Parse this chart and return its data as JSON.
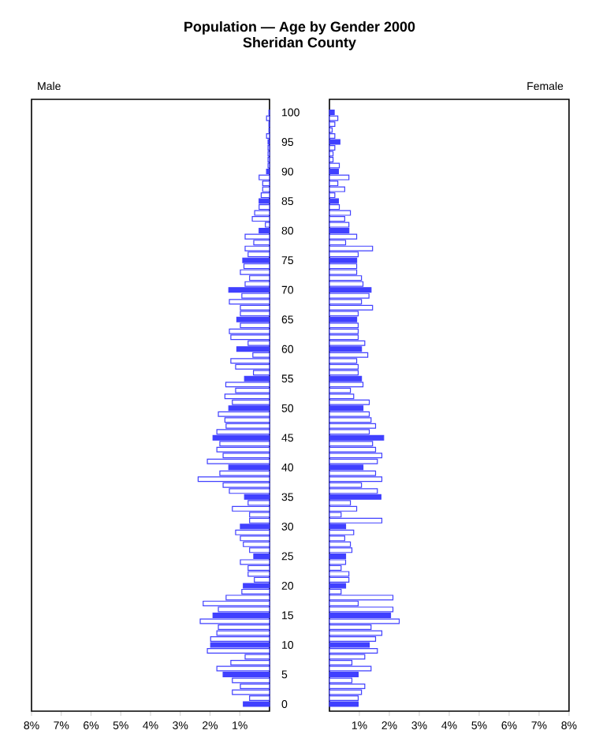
{
  "chart_data": [
    {
      "type": "bar",
      "orientation": "horizontal",
      "title": "Population — Age by Gender 2000",
      "subtitle": "Sheridan County",
      "annotations": [
        "Male"
      ],
      "categories": [
        "100",
        null,
        null,
        null,
        null,
        "95",
        null,
        null,
        null,
        null,
        "90",
        null,
        null,
        null,
        null,
        "85",
        null,
        null,
        null,
        null,
        "80",
        null,
        null,
        null,
        null,
        "75",
        null,
        null,
        null,
        null,
        "70",
        null,
        null,
        null,
        null,
        "65",
        null,
        null,
        null,
        null,
        "60",
        null,
        null,
        null,
        null,
        "55",
        null,
        null,
        null,
        null,
        "50",
        null,
        null,
        null,
        null,
        "45",
        null,
        null,
        null,
        null,
        "40",
        null,
        null,
        null,
        null,
        "35",
        null,
        null,
        null,
        null,
        "30",
        null,
        null,
        null,
        null,
        "25",
        null,
        null,
        null,
        null,
        "20",
        null,
        null,
        null,
        null,
        "15",
        null,
        null,
        null,
        null,
        "10",
        null,
        null,
        null,
        null,
        "5",
        null,
        null,
        null,
        null,
        "0"
      ],
      "xlim": [
        8,
        0
      ],
      "xticks": [
        {
          "value": 8,
          "label": "8%"
        },
        {
          "value": 7,
          "label": "7%"
        },
        {
          "value": 6,
          "label": "6%"
        },
        {
          "value": 5,
          "label": "5%"
        },
        {
          "value": 4,
          "label": "4%"
        },
        {
          "value": 3,
          "label": "3%"
        },
        {
          "value": 2,
          "label": "2%"
        },
        {
          "value": 1,
          "label": "1%"
        }
      ],
      "series": [
        {
          "color": "#4040ff",
          "values": [
            0.02,
            0.1,
            0.02,
            0.02,
            0.1,
            0.05,
            0.05,
            0.05,
            0.05,
            0.05,
            0.1,
            0.35,
            0.23,
            0.23,
            0.28,
            0.35,
            0.35,
            0.5,
            0.58,
            0.14,
            0.35,
            0.82,
            0.53,
            0.82,
            0.72,
            0.9,
            0.86,
            0.98,
            0.67,
            0.82,
            1.37,
            0.93,
            1.35,
            0.98,
            0.98,
            1.1,
            0.98,
            1.35,
            1.3,
            0.72,
            1.1,
            0.56,
            1.3,
            1.14,
            0.54,
            0.84,
            1.47,
            1.14,
            1.5,
            1.25,
            1.37,
            1.72,
            1.5,
            1.46,
            1.77,
            1.9,
            1.67,
            1.77,
            1.56,
            2.09,
            1.37,
            1.67,
            2.4,
            1.56,
            1.35,
            0.84,
            0.72,
            1.25,
            0.67,
            0.67,
            0.98,
            1.14,
            0.98,
            0.88,
            0.67,
            0.53,
            0.98,
            0.72,
            0.72,
            0.51,
            0.88,
            0.93,
            1.46,
            2.23,
            1.72,
            1.9,
            2.33,
            1.72,
            1.77,
            1.98,
            1.98,
            2.09,
            0.82,
            1.3,
            1.77,
            1.56,
            1.25,
            0.98,
            1.25,
            0.67,
            0.88
          ],
          "colors": [
            "#4040ff",
            "#ffffff",
            "#ffffff",
            "#ffffff",
            "#ffffff",
            "#4040ff",
            "#ffffff",
            "#ffffff",
            "#ffffff",
            "#ffffff",
            "#4040ff",
            "#ffffff",
            "#ffffff",
            "#ffffff",
            "#ffffff",
            "#4040ff",
            "#ffffff",
            "#ffffff",
            "#ffffff",
            "#ffffff",
            "#4040ff",
            "#ffffff",
            "#ffffff",
            "#ffffff",
            "#ffffff",
            "#4040ff",
            "#ffffff",
            "#ffffff",
            "#ffffff",
            "#ffffff",
            "#4040ff",
            "#ffffff",
            "#ffffff",
            "#ffffff",
            "#ffffff",
            "#4040ff",
            "#ffffff",
            "#ffffff",
            "#ffffff",
            "#ffffff",
            "#4040ff",
            "#ffffff",
            "#ffffff",
            "#ffffff",
            "#ffffff",
            "#4040ff",
            "#ffffff",
            "#ffffff",
            "#ffffff",
            "#ffffff",
            "#4040ff",
            "#ffffff",
            "#ffffff",
            "#ffffff",
            "#ffffff",
            "#4040ff",
            "#ffffff",
            "#ffffff",
            "#ffffff",
            "#ffffff",
            "#4040ff",
            "#ffffff",
            "#ffffff",
            "#ffffff",
            "#ffffff",
            "#4040ff",
            "#ffffff",
            "#ffffff",
            "#ffffff",
            "#ffffff",
            "#4040ff",
            "#ffffff",
            "#ffffff",
            "#ffffff",
            "#ffffff",
            "#4040ff",
            "#ffffff",
            "#ffffff",
            "#ffffff",
            "#ffffff",
            "#4040ff",
            "#ffffff",
            "#ffffff",
            "#ffffff",
            "#ffffff",
            "#4040ff",
            "#ffffff",
            "#ffffff",
            "#ffffff",
            "#ffffff",
            "#4040ff",
            "#ffffff",
            "#ffffff",
            "#ffffff",
            "#ffffff",
            "#4040ff",
            "#ffffff",
            "#ffffff",
            "#ffffff",
            "#ffffff",
            "#4040ff"
          ]
        }
      ]
    },
    {
      "type": "bar",
      "orientation": "horizontal",
      "annotations": [
        "Female"
      ],
      "tick_labels": "x",
      "categories": [
        "100",
        null,
        null,
        null,
        null,
        "95",
        null,
        null,
        null,
        null,
        "90",
        null,
        null,
        null,
        null,
        "85",
        null,
        null,
        null,
        null,
        "80",
        null,
        null,
        null,
        null,
        "75",
        null,
        null,
        null,
        null,
        "70",
        null,
        null,
        null,
        null,
        "65",
        null,
        null,
        null,
        null,
        "60",
        null,
        null,
        null,
        null,
        "55",
        null,
        null,
        null,
        null,
        "50",
        null,
        null,
        null,
        null,
        "45",
        null,
        null,
        null,
        null,
        "40",
        null,
        null,
        null,
        null,
        "35",
        null,
        null,
        null,
        null,
        "30",
        null,
        null,
        null,
        null,
        "25",
        null,
        null,
        null,
        null,
        "20",
        null,
        null,
        null,
        null,
        "15",
        null,
        null,
        null,
        null,
        "10",
        null,
        null,
        null,
        null,
        "5",
        null,
        null,
        null,
        null,
        "0"
      ],
      "xlim": [
        0,
        8
      ],
      "xticks": [
        {
          "value": 1,
          "label": "1%"
        },
        {
          "value": 2,
          "label": "2%"
        },
        {
          "value": 3,
          "label": "3%"
        },
        {
          "value": 4,
          "label": "4%"
        },
        {
          "value": 5,
          "label": "5%"
        },
        {
          "value": 6,
          "label": "6%"
        },
        {
          "value": 7,
          "label": "7%"
        },
        {
          "value": 8,
          "label": "8%"
        }
      ],
      "series": [
        {
          "color": "#4040ff",
          "values": [
            0.16,
            0.28,
            0.18,
            0.09,
            0.18,
            0.35,
            0.18,
            0.12,
            0.12,
            0.33,
            0.3,
            0.65,
            0.28,
            0.51,
            0.18,
            0.3,
            0.33,
            0.7,
            0.51,
            0.65,
            0.65,
            0.91,
            0.54,
            1.44,
            0.96,
            0.91,
            0.91,
            0.91,
            1.07,
            1.12,
            1.39,
            1.32,
            1.07,
            1.44,
            0.96,
            0.91,
            0.96,
            0.96,
            0.96,
            1.18,
            1.07,
            1.28,
            0.91,
            0.96,
            0.96,
            1.07,
            1.12,
            0.7,
            0.81,
            1.33,
            1.12,
            1.33,
            1.39,
            1.54,
            1.33,
            1.81,
            1.44,
            1.54,
            1.75,
            1.6,
            1.12,
            1.54,
            1.75,
            1.07,
            1.6,
            1.72,
            0.7,
            0.91,
            0.39,
            1.75,
            0.54,
            0.81,
            0.51,
            0.7,
            0.75,
            0.54,
            0.54,
            0.39,
            0.65,
            0.65,
            0.54,
            0.39,
            2.12,
            0.96,
            2.12,
            2.04,
            2.33,
            1.39,
            1.75,
            1.54,
            1.33,
            1.6,
            1.18,
            0.75,
            1.39,
            0.96,
            0.75,
            1.18,
            1.07,
            0.96,
            0.96
          ],
          "colors": [
            "#4040ff",
            "#ffffff",
            "#ffffff",
            "#ffffff",
            "#ffffff",
            "#4040ff",
            "#ffffff",
            "#ffffff",
            "#ffffff",
            "#ffffff",
            "#4040ff",
            "#ffffff",
            "#ffffff",
            "#ffffff",
            "#ffffff",
            "#4040ff",
            "#ffffff",
            "#ffffff",
            "#ffffff",
            "#ffffff",
            "#4040ff",
            "#ffffff",
            "#ffffff",
            "#ffffff",
            "#ffffff",
            "#4040ff",
            "#ffffff",
            "#ffffff",
            "#ffffff",
            "#ffffff",
            "#4040ff",
            "#ffffff",
            "#ffffff",
            "#ffffff",
            "#ffffff",
            "#4040ff",
            "#ffffff",
            "#ffffff",
            "#ffffff",
            "#ffffff",
            "#4040ff",
            "#ffffff",
            "#ffffff",
            "#ffffff",
            "#ffffff",
            "#4040ff",
            "#ffffff",
            "#ffffff",
            "#ffffff",
            "#ffffff",
            "#4040ff",
            "#ffffff",
            "#ffffff",
            "#ffffff",
            "#ffffff",
            "#4040ff",
            "#ffffff",
            "#ffffff",
            "#ffffff",
            "#ffffff",
            "#4040ff",
            "#ffffff",
            "#ffffff",
            "#ffffff",
            "#ffffff",
            "#4040ff",
            "#ffffff",
            "#ffffff",
            "#ffffff",
            "#ffffff",
            "#4040ff",
            "#ffffff",
            "#ffffff",
            "#ffffff",
            "#ffffff",
            "#4040ff",
            "#ffffff",
            "#ffffff",
            "#ffffff",
            "#ffffff",
            "#4040ff",
            "#ffffff",
            "#ffffff",
            "#ffffff",
            "#ffffff",
            "#4040ff",
            "#ffffff",
            "#ffffff",
            "#ffffff",
            "#ffffff",
            "#4040ff",
            "#ffffff",
            "#ffffff",
            "#ffffff",
            "#ffffff",
            "#4040ff",
            "#ffffff",
            "#ffffff",
            "#ffffff",
            "#ffffff",
            "#4040ff"
          ]
        }
      ]
    }
  ]
}
